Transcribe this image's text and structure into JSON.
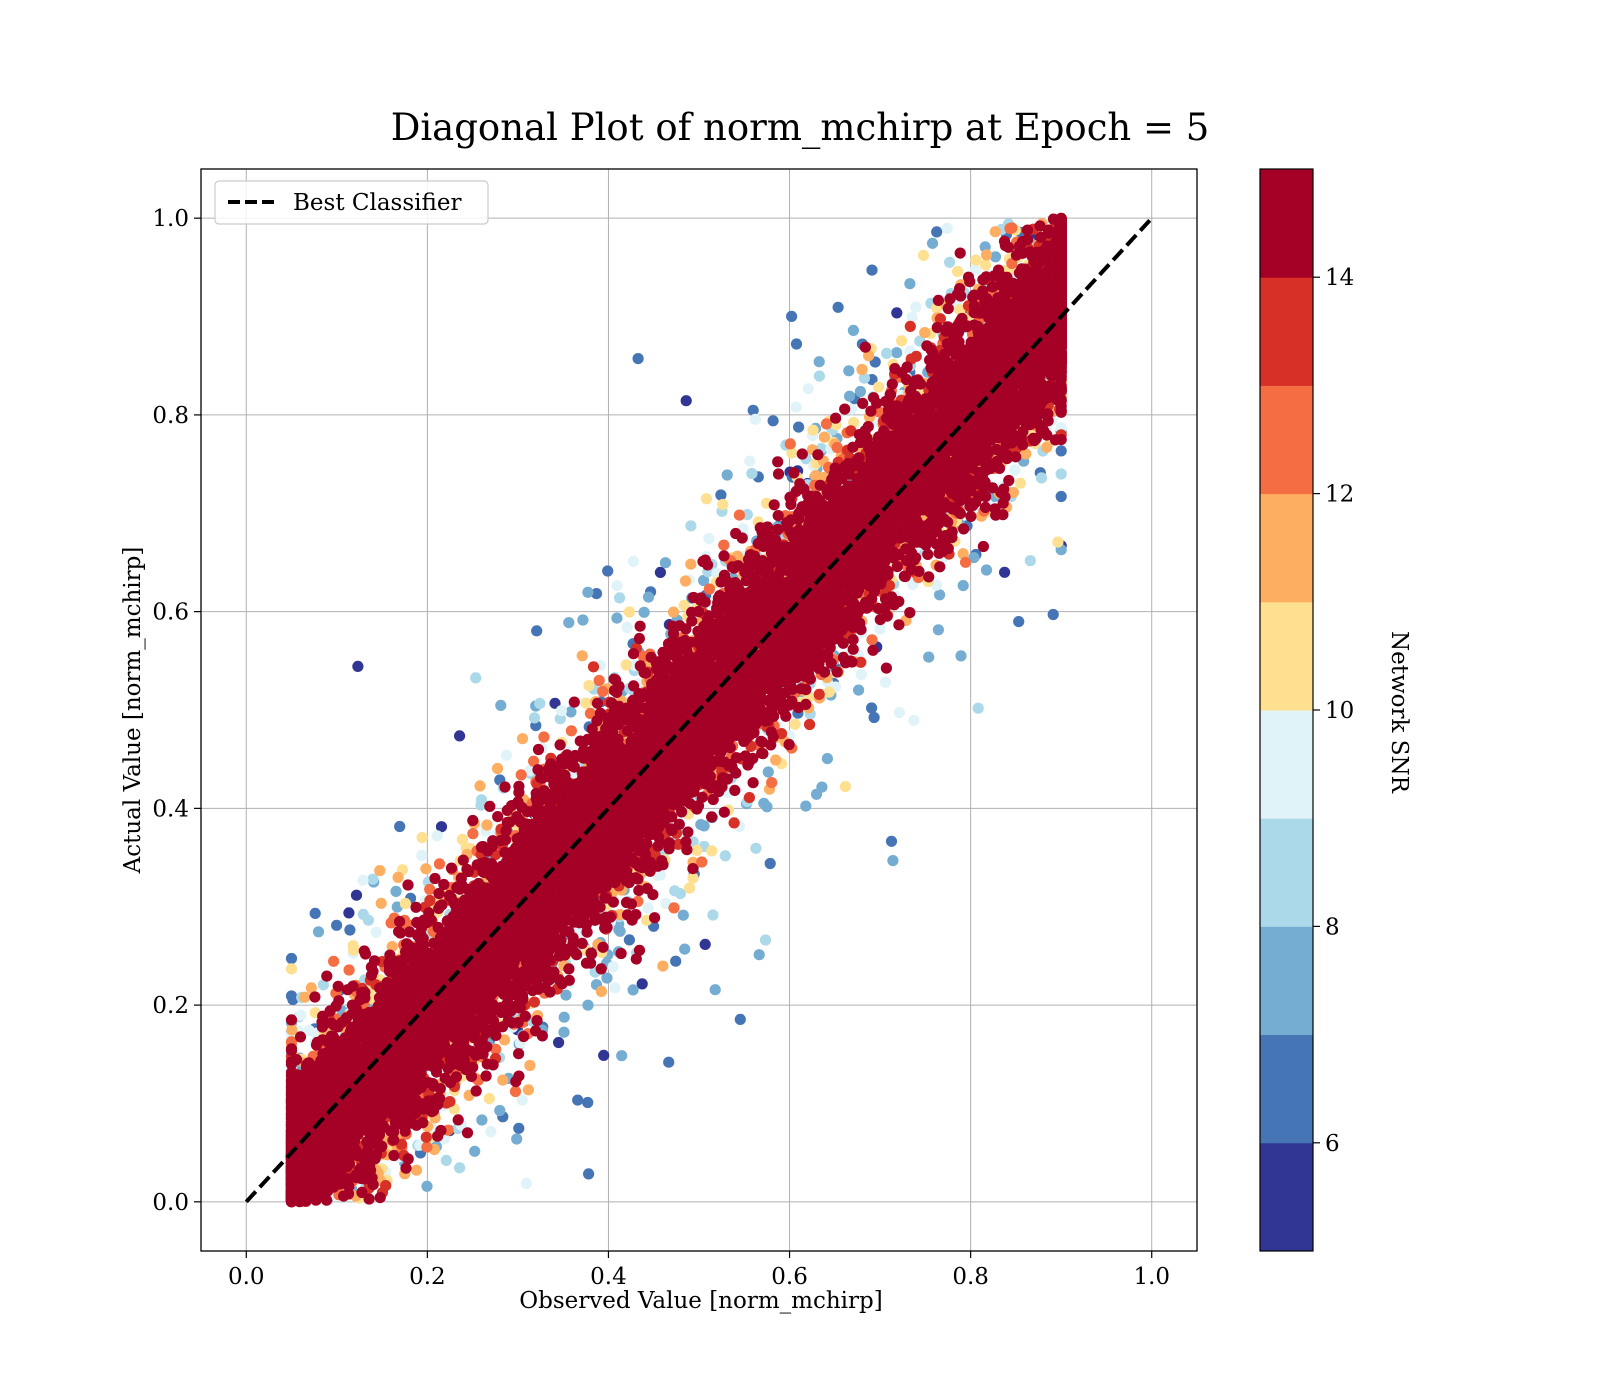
{
  "chart_data": {
    "type": "scatter",
    "title": "Diagonal Plot of norm_mchirp at Epoch = 5",
    "xlabel": "Observed Value [norm_mchirp]",
    "ylabel": "Actual Value [norm_mchirp]",
    "xlim": [
      -0.05,
      1.05
    ],
    "ylim": [
      -0.05,
      1.05
    ],
    "xticks": [
      "0.0",
      "0.2",
      "0.4",
      "0.6",
      "0.8",
      "1.0"
    ],
    "yticks": [
      "0.0",
      "0.2",
      "0.4",
      "0.6",
      "0.8",
      "1.0"
    ],
    "grid": true,
    "legend": {
      "placement": "top-left",
      "entries": [
        {
          "label": "Best Classifier",
          "style": "dashed",
          "color": "#000000"
        }
      ]
    },
    "reference_line": {
      "label": "Best Classifier",
      "x": [
        0.0,
        1.0
      ],
      "y": [
        0.0,
        1.0
      ],
      "style": "dashed",
      "color": "#000000"
    },
    "colorbar": {
      "label": "Network SNR",
      "min": 5,
      "max": 15,
      "ticks": [
        "6",
        "8",
        "10",
        "12",
        "14"
      ],
      "tick_values": [
        6,
        8,
        10,
        12,
        14
      ],
      "colors": [
        "#313695",
        "#4575b4",
        "#74add1",
        "#abd9e9",
        "#e0f3f8",
        "#fee090",
        "#fdae61",
        "#f46d43",
        "#d73027",
        "#a50026"
      ]
    },
    "point_cloud": {
      "count": 16000,
      "x_range": [
        0.05,
        0.9
      ],
      "y_range": [
        0.0,
        1.0
      ],
      "description_of_trend": "points concentrated along y = x; high SNR near diagonal, low SNR scattered far from diagonal"
    }
  }
}
